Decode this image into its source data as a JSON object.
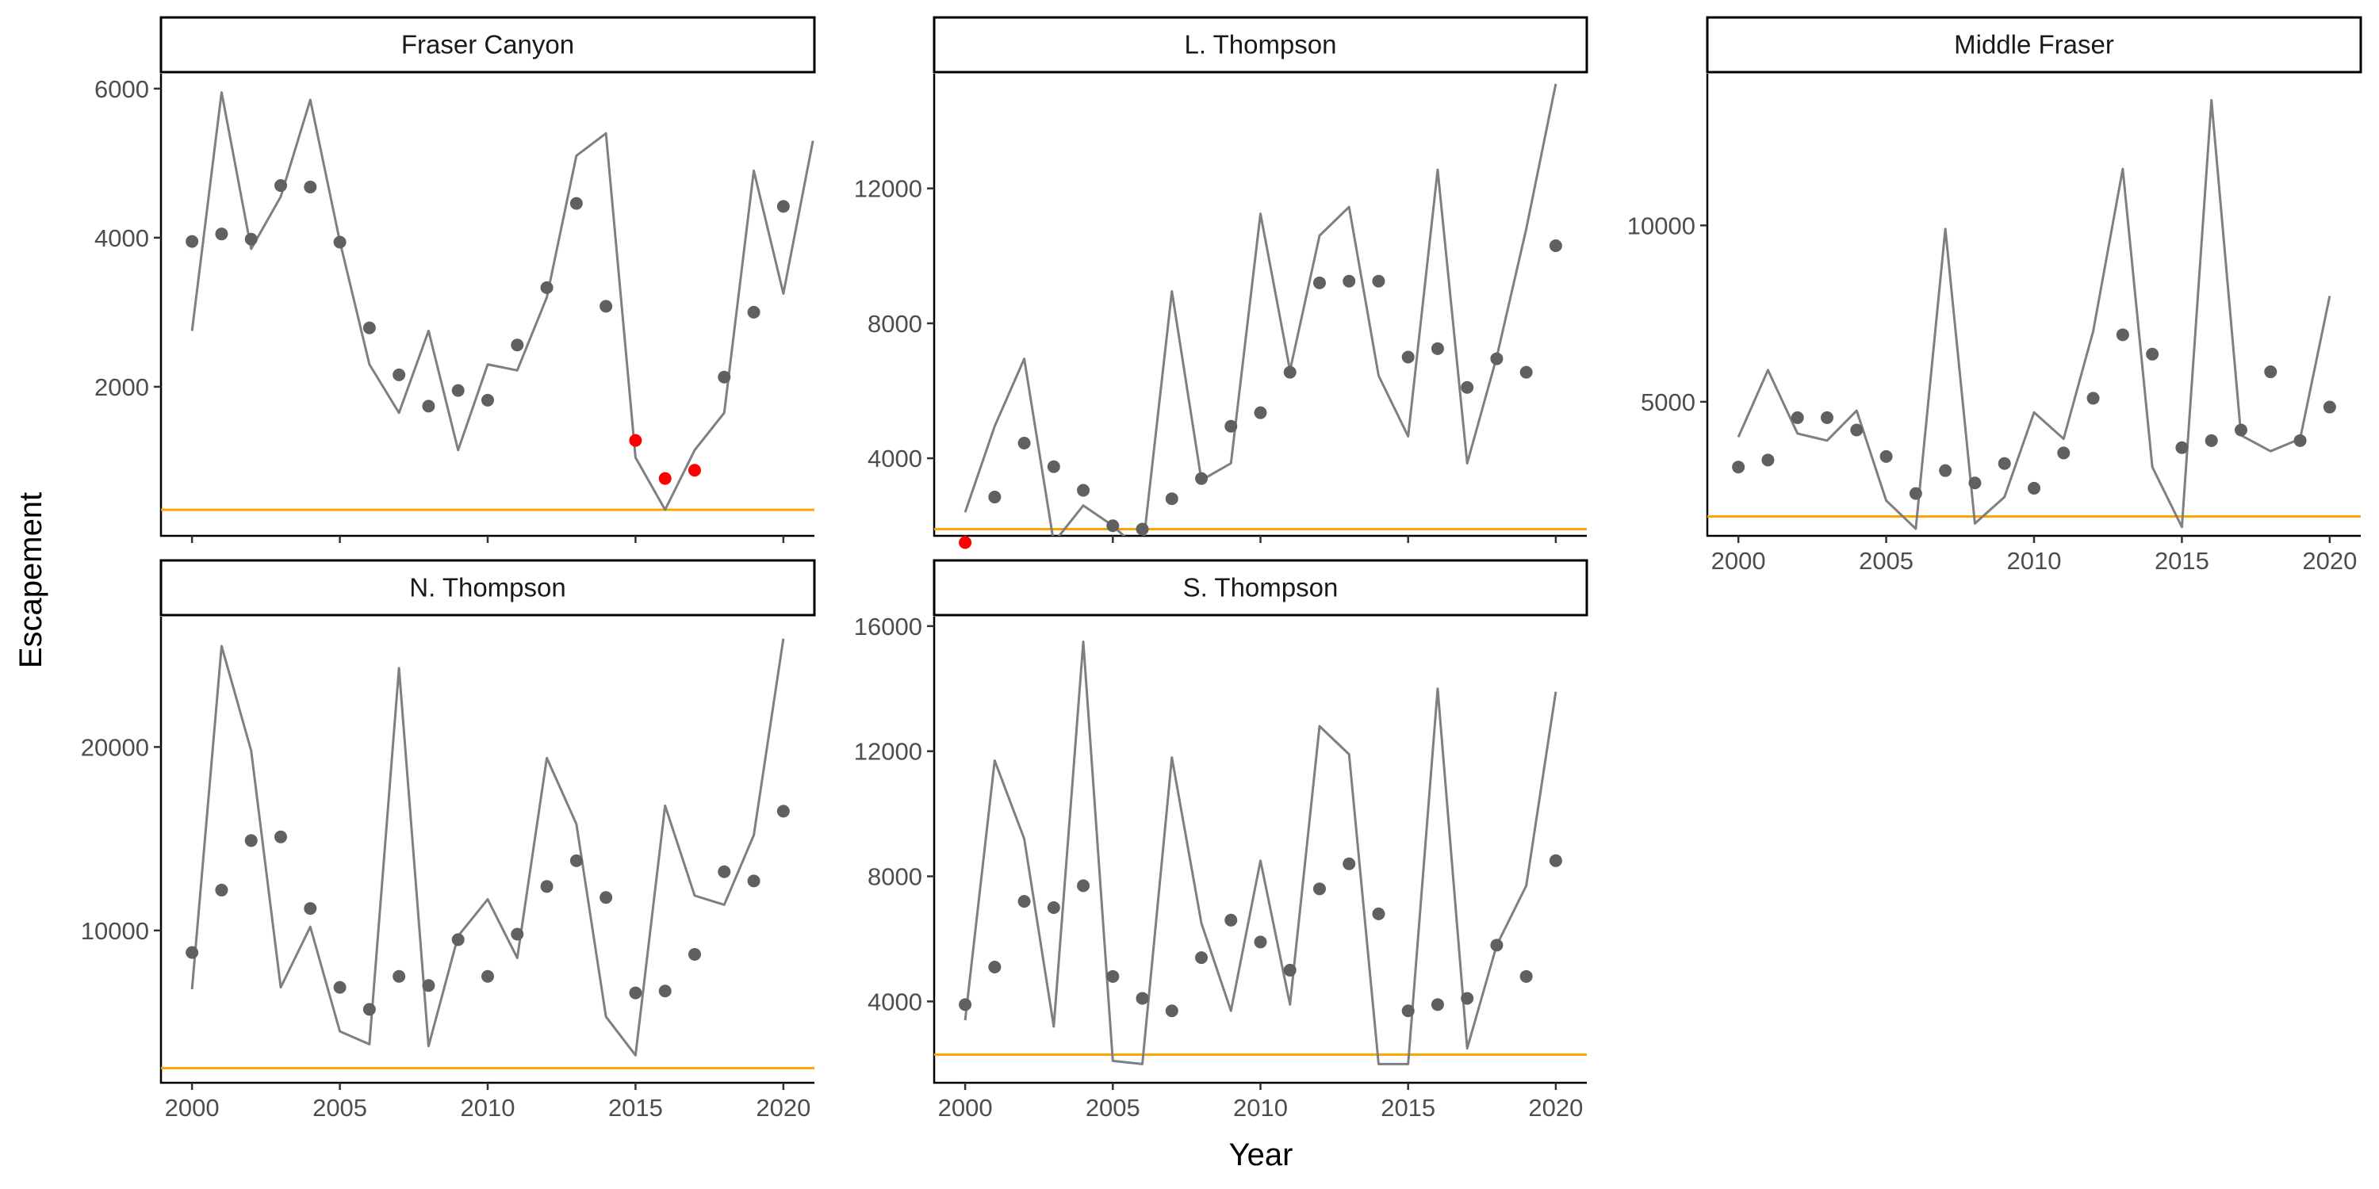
{
  "chart_data": {
    "type": "line",
    "xlabel": "Year",
    "ylabel": "Escapement",
    "grid": false,
    "colors": {
      "line": "#7f7f7f",
      "point": "#606060",
      "highlight": "#ff0000",
      "reference": "#ffa500"
    },
    "x_ticks": [
      2000,
      2005,
      2010,
      2015,
      2020
    ],
    "panels": [
      {
        "title": "Fraser Canyon",
        "ylim": [
          0,
          6200
        ],
        "y_ticks": [
          2000,
          4000,
          6000
        ],
        "reference": 350,
        "line": [
          [
            2000,
            2750
          ],
          [
            2001,
            5950
          ],
          [
            2002,
            3850
          ],
          [
            2003,
            4550
          ],
          [
            2004,
            5850
          ],
          [
            2005,
            3950
          ],
          [
            2006,
            2300
          ],
          [
            2007,
            1650
          ],
          [
            2008,
            2750
          ],
          [
            2009,
            1150
          ],
          [
            2010,
            2300
          ],
          [
            2011,
            2220
          ],
          [
            2012,
            3200
          ],
          [
            2013,
            5100
          ],
          [
            2014,
            5400
          ],
          [
            2015,
            1050
          ],
          [
            2016,
            350
          ],
          [
            2017,
            1150
          ],
          [
            2018,
            1650
          ],
          [
            2019,
            4900
          ],
          [
            2020,
            3250
          ],
          [
            2021,
            5300
          ]
        ],
        "points": [
          [
            2000,
            3950
          ],
          [
            2001,
            4050
          ],
          [
            2002,
            3980
          ],
          [
            2003,
            4700
          ],
          [
            2004,
            4680
          ],
          [
            2005,
            3940
          ],
          [
            2006,
            2790
          ],
          [
            2007,
            2160
          ],
          [
            2008,
            1740
          ],
          [
            2009,
            1950
          ],
          [
            2010,
            1820
          ],
          [
            2011,
            2560
          ],
          [
            2012,
            3330
          ],
          [
            2013,
            4460
          ],
          [
            2014,
            3080
          ],
          [
            2015,
            1280
          ],
          [
            2016,
            770
          ],
          [
            2017,
            880
          ],
          [
            2018,
            2130
          ],
          [
            2019,
            3000
          ],
          [
            2020,
            4420
          ]
        ],
        "highlight_points": [
          [
            2015,
            1280
          ],
          [
            2016,
            770
          ],
          [
            2017,
            880
          ]
        ]
      },
      {
        "title": "L. Thompson",
        "ylim": [
          1700,
          15400
        ],
        "y_ticks": [
          4000,
          8000,
          12000
        ],
        "reference": 1900,
        "line": [
          [
            2000,
            2400
          ],
          [
            2001,
            4950
          ],
          [
            2002,
            6950
          ],
          [
            2003,
            1500
          ],
          [
            2004,
            2600
          ],
          [
            2005,
            2000
          ],
          [
            2006,
            1200
          ],
          [
            2007,
            8950
          ],
          [
            2008,
            3350
          ],
          [
            2009,
            3850
          ],
          [
            2010,
            11250
          ],
          [
            2011,
            6600
          ],
          [
            2012,
            10600
          ],
          [
            2013,
            11450
          ],
          [
            2014,
            6450
          ],
          [
            2015,
            4650
          ],
          [
            2016,
            12550
          ],
          [
            2017,
            3850
          ],
          [
            2018,
            7000
          ],
          [
            2019,
            10800
          ],
          [
            2020,
            15100
          ]
        ],
        "points": [
          [
            2000,
            1500
          ],
          [
            2001,
            2850
          ],
          [
            2002,
            4450
          ],
          [
            2003,
            3750
          ],
          [
            2004,
            3050
          ],
          [
            2005,
            2000
          ],
          [
            2006,
            1900
          ],
          [
            2007,
            2800
          ],
          [
            2008,
            3400
          ],
          [
            2009,
            4950
          ],
          [
            2010,
            5350
          ],
          [
            2011,
            6550
          ],
          [
            2012,
            9200
          ],
          [
            2013,
            9250
          ],
          [
            2014,
            9250
          ],
          [
            2015,
            7000
          ],
          [
            2016,
            7250
          ],
          [
            2017,
            6100
          ],
          [
            2018,
            6950
          ],
          [
            2019,
            6550
          ],
          [
            2020,
            10300
          ]
        ],
        "highlight_points": [
          [
            2000,
            1500
          ]
        ]
      },
      {
        "title": "Middle Fraser",
        "ylim": [
          1200,
          14300
        ],
        "y_ticks": [
          5000,
          10000
        ],
        "reference": 1750,
        "line": [
          [
            2000,
            4000
          ],
          [
            2001,
            5900
          ],
          [
            2002,
            4100
          ],
          [
            2003,
            3900
          ],
          [
            2004,
            4750
          ],
          [
            2005,
            2200
          ],
          [
            2006,
            1400
          ],
          [
            2007,
            9900
          ],
          [
            2008,
            1550
          ],
          [
            2009,
            2300
          ],
          [
            2010,
            4700
          ],
          [
            2011,
            3950
          ],
          [
            2012,
            7000
          ],
          [
            2013,
            11600
          ],
          [
            2014,
            3150
          ],
          [
            2015,
            1450
          ],
          [
            2016,
            13550
          ],
          [
            2017,
            4050
          ],
          [
            2018,
            3600
          ],
          [
            2019,
            3950
          ],
          [
            2020,
            8000
          ]
        ],
        "points": [
          [
            2000,
            3150
          ],
          [
            2001,
            3350
          ],
          [
            2002,
            4550
          ],
          [
            2003,
            4550
          ],
          [
            2004,
            4200
          ],
          [
            2005,
            3450
          ],
          [
            2006,
            2400
          ],
          [
            2007,
            3050
          ],
          [
            2008,
            2700
          ],
          [
            2009,
            3250
          ],
          [
            2010,
            2550
          ],
          [
            2011,
            3550
          ],
          [
            2012,
            5100
          ],
          [
            2013,
            6900
          ],
          [
            2014,
            6350
          ],
          [
            2015,
            3700
          ],
          [
            2016,
            3900
          ],
          [
            2017,
            4200
          ],
          [
            2018,
            5850
          ],
          [
            2019,
            3900
          ],
          [
            2020,
            4850
          ]
        ],
        "highlight_points": []
      },
      {
        "title": "N. Thompson",
        "ylim": [
          1700,
          27100
        ],
        "y_ticks": [
          10000,
          20000
        ],
        "reference": 2500,
        "line": [
          [
            2000,
            6800
          ],
          [
            2001,
            25500
          ],
          [
            2002,
            19800
          ],
          [
            2003,
            6900
          ],
          [
            2004,
            10200
          ],
          [
            2005,
            4500
          ],
          [
            2006,
            3800
          ],
          [
            2007,
            24300
          ],
          [
            2008,
            3700
          ],
          [
            2009,
            9700
          ],
          [
            2010,
            11700
          ],
          [
            2011,
            8500
          ],
          [
            2012,
            19400
          ],
          [
            2013,
            15800
          ],
          [
            2014,
            5300
          ],
          [
            2015,
            3200
          ],
          [
            2016,
            16800
          ],
          [
            2017,
            11900
          ],
          [
            2018,
            11400
          ],
          [
            2019,
            15200
          ],
          [
            2020,
            25900
          ]
        ],
        "points": [
          [
            2000,
            8800
          ],
          [
            2001,
            12200
          ],
          [
            2002,
            14900
          ],
          [
            2003,
            15100
          ],
          [
            2004,
            11200
          ],
          [
            2005,
            6900
          ],
          [
            2006,
            5700
          ],
          [
            2007,
            7500
          ],
          [
            2008,
            7000
          ],
          [
            2009,
            9500
          ],
          [
            2010,
            7500
          ],
          [
            2011,
            9800
          ],
          [
            2012,
            12400
          ],
          [
            2013,
            13800
          ],
          [
            2014,
            11800
          ],
          [
            2015,
            6600
          ],
          [
            2016,
            6700
          ],
          [
            2017,
            8700
          ],
          [
            2018,
            13200
          ],
          [
            2019,
            12700
          ],
          [
            2020,
            16500
          ]
        ],
        "highlight_points": []
      },
      {
        "title": "S. Thompson",
        "ylim": [
          1400,
          16300
        ],
        "y_ticks": [
          4000,
          8000,
          12000,
          16000
        ],
        "reference": 2300,
        "line": [
          [
            2000,
            3400
          ],
          [
            2001,
            11700
          ],
          [
            2002,
            9200
          ],
          [
            2003,
            3200
          ],
          [
            2004,
            15500
          ],
          [
            2005,
            2100
          ],
          [
            2006,
            2000
          ],
          [
            2007,
            11800
          ],
          [
            2008,
            6500
          ],
          [
            2009,
            3700
          ],
          [
            2010,
            8500
          ],
          [
            2011,
            3900
          ],
          [
            2012,
            12800
          ],
          [
            2013,
            11900
          ],
          [
            2014,
            2000
          ],
          [
            2015,
            2000
          ],
          [
            2016,
            14000
          ],
          [
            2017,
            2500
          ],
          [
            2018,
            5800
          ],
          [
            2019,
            7700
          ],
          [
            2020,
            13900
          ]
        ],
        "points": [
          [
            2000,
            3900
          ],
          [
            2001,
            5100
          ],
          [
            2002,
            7200
          ],
          [
            2003,
            7000
          ],
          [
            2004,
            7700
          ],
          [
            2005,
            4800
          ],
          [
            2006,
            4100
          ],
          [
            2007,
            3700
          ],
          [
            2008,
            5400
          ],
          [
            2009,
            6600
          ],
          [
            2010,
            5900
          ],
          [
            2011,
            5000
          ],
          [
            2012,
            7600
          ],
          [
            2013,
            8400
          ],
          [
            2014,
            6800
          ],
          [
            2015,
            3700
          ],
          [
            2016,
            3900
          ],
          [
            2017,
            4100
          ],
          [
            2018,
            5800
          ],
          [
            2019,
            4800
          ],
          [
            2020,
            8500
          ]
        ],
        "highlight_points": []
      }
    ]
  }
}
